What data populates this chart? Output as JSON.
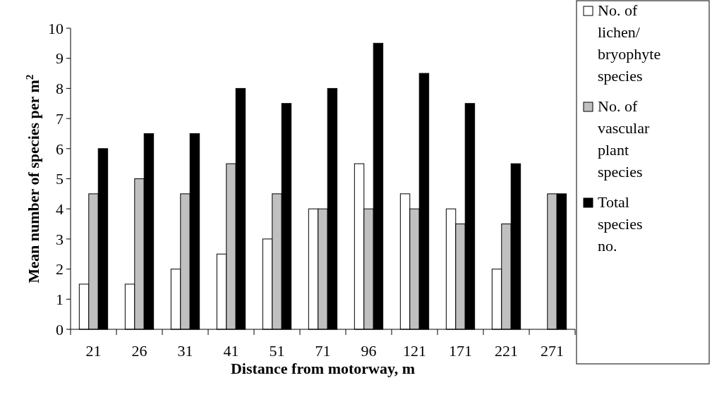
{
  "chart_data": {
    "type": "bar",
    "xlabel": "Distance from motorway, m",
    "ylabel": "Mean number of species per m$^{2}$",
    "categories": [
      "21",
      "26",
      "31",
      "41",
      "51",
      "71",
      "96",
      "121",
      "171",
      "221",
      "271"
    ],
    "series": [
      {
        "name": "No. of lichen/bryophyte species",
        "color": "#ffffff",
        "values": [
          1.5,
          1.5,
          2,
          2.5,
          3,
          4,
          5.5,
          4.5,
          4,
          2,
          null
        ]
      },
      {
        "name": "No. of vascular plant species",
        "color": "#c0c0c0",
        "values": [
          4.5,
          5,
          4.5,
          5.5,
          4.5,
          4,
          4,
          4,
          3.5,
          3.5,
          4.5
        ]
      },
      {
        "name": "Total species no.",
        "color": "#000000",
        "values": [
          6,
          6.5,
          6.5,
          8,
          7.5,
          8,
          9.5,
          8.5,
          7.5,
          5.5,
          4.5
        ]
      }
    ],
    "ylim": [
      0,
      10
    ],
    "yticks": [
      0,
      1,
      2,
      3,
      4,
      5,
      6,
      7,
      8,
      9,
      10
    ],
    "grid": false,
    "legend": "right"
  }
}
